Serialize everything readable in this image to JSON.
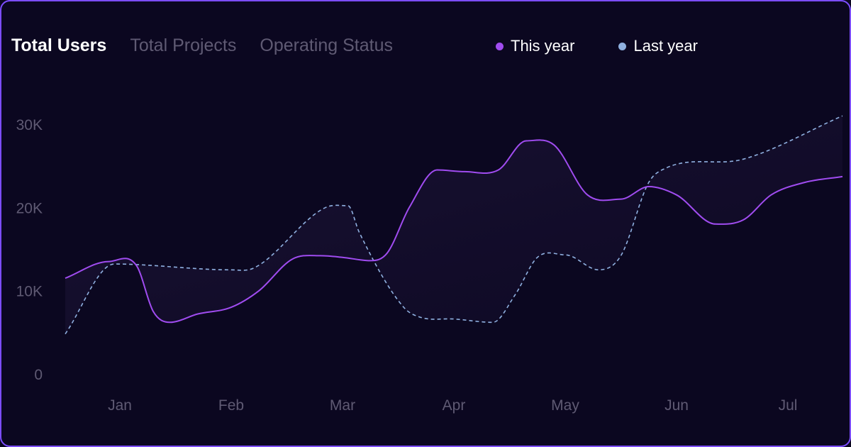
{
  "tabs": {
    "total_users": "Total Users",
    "total_projects": "Total Projects",
    "operating_status": "Operating Status"
  },
  "colors": {
    "this_year": "#a04cf0",
    "last_year": "#8fb0e0",
    "active_tab": "#ffffff",
    "inactive_tab": "#5f5a73",
    "border": "#7c4dff",
    "background": "#0b0720"
  },
  "chart_data": {
    "type": "line",
    "categories": [
      "Jan",
      "Feb",
      "Mar",
      "Apr",
      "May",
      "Jun",
      "Jul"
    ],
    "y_ticks": [
      "0",
      "10K",
      "20K",
      "30K"
    ],
    "ylim": [
      0,
      30000
    ],
    "grid": false,
    "legend": "top",
    "x_range": [
      -0.5,
      6.5
    ],
    "series": [
      {
        "name": "This year",
        "style": "solid",
        "x": [
          -0.5,
          -0.1,
          0.15,
          0.3,
          0.45,
          0.7,
          1.0,
          1.25,
          1.55,
          1.8,
          2.0,
          2.25,
          2.4,
          2.6,
          2.85,
          3.1,
          3.4,
          3.65,
          3.9,
          4.2,
          4.5,
          4.75,
          5.0,
          5.35,
          5.6,
          5.85,
          6.15,
          6.5
        ],
        "values": [
          11500,
          13500,
          13000,
          7500,
          6200,
          7200,
          8000,
          10000,
          13800,
          14200,
          14000,
          13600,
          14500,
          20000,
          24500,
          24300,
          24500,
          28000,
          27500,
          21500,
          21000,
          22500,
          21500,
          18000,
          18500,
          21500,
          23000,
          23700
        ]
      },
      {
        "name": "Last year",
        "style": "dashed",
        "x": [
          -0.5,
          -0.05,
          1.0,
          1.2,
          1.85,
          2.05,
          2.15,
          2.55,
          2.7,
          3.0,
          3.35,
          3.55,
          3.75,
          4.0,
          4.3,
          4.5,
          4.75,
          4.9,
          5.6,
          6.5
        ],
        "values": [
          4800,
          13200,
          12500,
          12700,
          20000,
          20200,
          17000,
          8000,
          6800,
          6600,
          6200,
          9500,
          14000,
          14300,
          12500,
          14200,
          23000,
          24700,
          25800,
          31000
        ]
      }
    ]
  }
}
